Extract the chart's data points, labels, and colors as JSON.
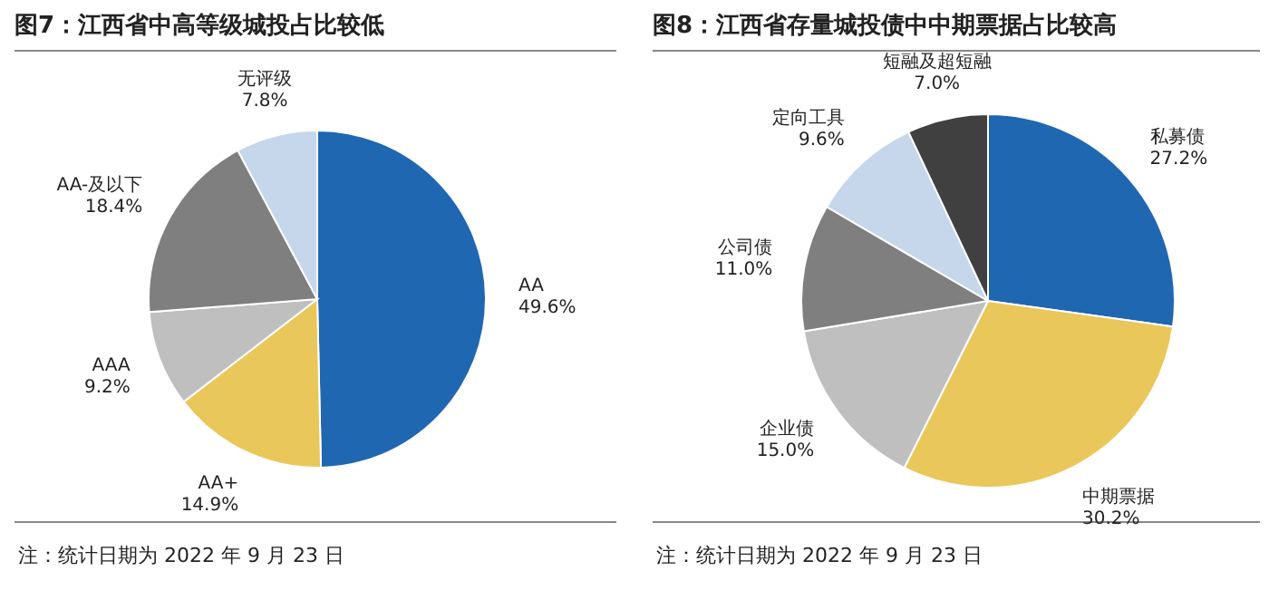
{
  "chart_data": [
    {
      "type": "pie",
      "title": "图7：江西省中高等级城投占比较低",
      "categories": [
        "AA",
        "AA+",
        "AAA",
        "AA-及以下",
        "无评级"
      ],
      "values": [
        49.6,
        14.9,
        9.2,
        18.4,
        7.8
      ],
      "colors": [
        "#1f67b1",
        "#e9c75a",
        "#bfbfbf",
        "#7f7f7f",
        "#c6d6eb"
      ],
      "value_labels": [
        "49.6%",
        "14.9%",
        "9.2%",
        "18.4%",
        "7.8%"
      ],
      "annotations": [
        "注：统计日期为 2022 年 9 月 23 日"
      ]
    },
    {
      "type": "pie",
      "title": "图8：江西省存量城投债中中期票据占比较高",
      "categories": [
        "私募债",
        "中期票据",
        "企业债",
        "公司债",
        "定向工具",
        "短融及超短融"
      ],
      "values": [
        27.2,
        30.2,
        15.0,
        11.0,
        9.6,
        7.0
      ],
      "colors": [
        "#1f67b1",
        "#e9c75a",
        "#bfbfbf",
        "#7f7f7f",
        "#c6d6eb",
        "#404040"
      ],
      "value_labels": [
        "27.2%",
        "30.2%",
        "15.0%",
        "11.0%",
        "9.6%",
        "7.0%"
      ],
      "annotations": [
        "注：统计日期为 2022 年 9 月 23 日"
      ]
    }
  ]
}
